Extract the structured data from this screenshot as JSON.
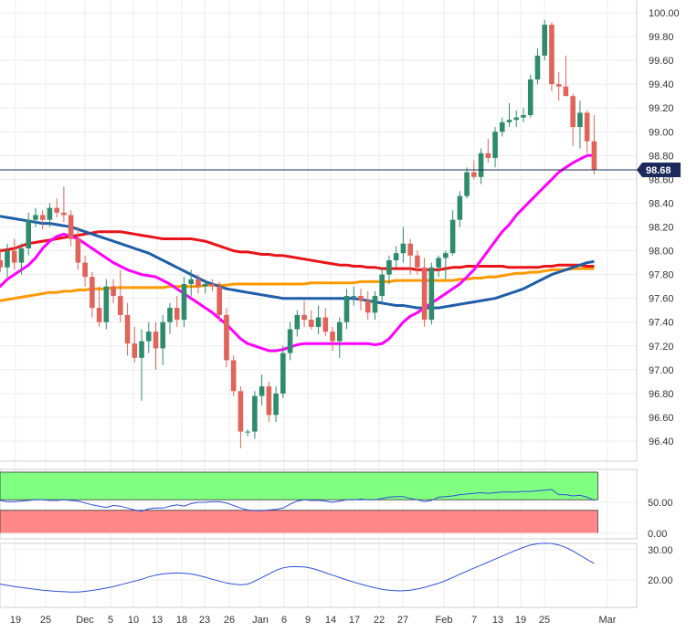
{
  "chart_data": [
    {
      "type": "candlestick",
      "title": "",
      "xlabel": "",
      "ylabel": "",
      "ylim": [
        96.2,
        100.05
      ],
      "y_ticks": [
        "100.00",
        "99.80",
        "99.60",
        "99.40",
        "99.20",
        "99.00",
        "98.80",
        "98.60",
        "98.40",
        "98.20",
        "98.00",
        "97.80",
        "97.60",
        "97.40",
        "97.20",
        "97.00",
        "96.80",
        "96.60",
        "96.40"
      ],
      "x_tick_labels": [
        "19",
        "25",
        "Dec",
        "5",
        "10",
        "13",
        "18",
        "23",
        "26",
        "Jan",
        "6",
        "9",
        "14",
        "17",
        "22",
        "27",
        "Feb",
        "7",
        "13",
        "19",
        "25",
        "Mar"
      ],
      "last_price": {
        "value": 98.68,
        "label": "98.68"
      },
      "colors": {
        "up": "#2e8b6b",
        "down": "#e0645a",
        "sma20": "#ff00ff",
        "sma50": "#1f5ea8",
        "sma100": "#e8141a",
        "sma200": "#ff9900"
      },
      "candles_ohlc": [
        [
          97.78,
          97.96,
          97.7,
          97.92
        ],
        [
          97.92,
          98.02,
          97.82,
          97.86
        ],
        [
          97.86,
          98.06,
          97.78,
          98.0
        ],
        [
          98.0,
          98.1,
          97.84,
          97.9
        ],
        [
          97.9,
          98.06,
          97.8,
          98.02
        ],
        [
          98.02,
          98.32,
          97.96,
          98.26
        ],
        [
          98.26,
          98.36,
          98.2,
          98.3
        ],
        [
          98.3,
          98.34,
          98.18,
          98.26
        ],
        [
          98.26,
          98.4,
          98.2,
          98.36
        ],
        [
          98.36,
          98.44,
          98.28,
          98.32
        ],
        [
          98.32,
          98.54,
          98.24,
          98.3
        ],
        [
          98.3,
          98.34,
          98.04,
          98.1
        ],
        [
          98.1,
          98.2,
          97.84,
          97.9
        ],
        [
          97.9,
          97.96,
          97.7,
          97.78
        ],
        [
          97.78,
          97.82,
          97.44,
          97.52
        ],
        [
          97.52,
          97.7,
          97.36,
          97.4
        ],
        [
          97.4,
          97.76,
          97.34,
          97.7
        ],
        [
          97.7,
          97.76,
          97.56,
          97.62
        ],
        [
          97.62,
          97.84,
          97.4,
          97.46
        ],
        [
          97.46,
          97.56,
          97.12,
          97.22
        ],
        [
          97.22,
          97.36,
          97.06,
          97.1
        ],
        [
          97.1,
          97.34,
          96.74,
          97.24
        ],
        [
          97.24,
          97.4,
          97.14,
          97.32
        ],
        [
          97.32,
          97.4,
          97.0,
          97.18
        ],
        [
          97.18,
          97.46,
          97.04,
          97.4
        ],
        [
          97.4,
          97.56,
          97.3,
          97.52
        ],
        [
          97.52,
          97.62,
          97.36,
          97.42
        ],
        [
          97.42,
          97.78,
          97.36,
          97.72
        ],
        [
          97.72,
          97.84,
          97.62,
          97.76
        ],
        [
          97.76,
          97.8,
          97.64,
          97.7
        ],
        [
          97.7,
          97.76,
          97.64,
          97.72
        ],
        [
          97.72,
          97.76,
          97.66,
          97.7
        ],
        [
          97.7,
          97.74,
          97.4,
          97.46
        ],
        [
          97.46,
          97.52,
          97.02,
          97.08
        ],
        [
          97.08,
          97.12,
          96.78,
          96.82
        ],
        [
          96.82,
          96.86,
          96.34,
          96.48
        ],
        [
          96.48,
          96.5,
          96.44,
          96.48
        ],
        [
          96.48,
          96.82,
          96.42,
          96.78
        ],
        [
          96.78,
          96.96,
          96.7,
          96.86
        ],
        [
          96.86,
          96.9,
          96.56,
          96.62
        ],
        [
          96.62,
          96.86,
          96.56,
          96.8
        ],
        [
          96.8,
          97.2,
          96.76,
          97.14
        ],
        [
          97.14,
          97.4,
          97.08,
          97.34
        ],
        [
          97.34,
          97.5,
          97.28,
          97.46
        ],
        [
          97.46,
          97.58,
          97.36,
          97.42
        ],
        [
          97.42,
          97.5,
          97.34,
          97.36
        ],
        [
          97.36,
          97.54,
          97.3,
          97.44
        ],
        [
          97.44,
          97.52,
          97.28,
          97.32
        ],
        [
          97.32,
          97.36,
          97.16,
          97.24
        ],
        [
          97.24,
          97.44,
          97.1,
          97.4
        ],
        [
          97.4,
          97.68,
          97.34,
          97.62
        ],
        [
          97.62,
          97.7,
          97.54,
          97.62
        ],
        [
          97.62,
          97.68,
          97.5,
          97.58
        ],
        [
          97.58,
          97.66,
          97.42,
          97.48
        ],
        [
          97.48,
          97.66,
          97.42,
          97.62
        ],
        [
          97.62,
          97.86,
          97.56,
          97.8
        ],
        [
          97.8,
          97.96,
          97.72,
          97.92
        ],
        [
          97.92,
          98.04,
          97.86,
          97.98
        ],
        [
          97.98,
          98.2,
          97.9,
          98.06
        ],
        [
          98.06,
          98.1,
          97.8,
          97.96
        ],
        [
          97.96,
          98.0,
          97.8,
          97.86
        ],
        [
          97.86,
          97.94,
          97.36,
          97.42
        ],
        [
          97.42,
          97.9,
          97.38,
          97.86
        ],
        [
          97.86,
          97.96,
          97.78,
          97.94
        ],
        [
          97.94,
          98.0,
          97.76,
          97.98
        ],
        [
          97.98,
          98.34,
          97.96,
          98.26
        ],
        [
          98.26,
          98.5,
          98.2,
          98.46
        ],
        [
          98.46,
          98.7,
          98.44,
          98.66
        ],
        [
          98.66,
          98.76,
          98.6,
          98.62
        ],
        [
          98.62,
          98.86,
          98.56,
          98.82
        ],
        [
          98.82,
          98.94,
          98.74,
          98.78
        ],
        [
          98.78,
          99.04,
          98.7,
          99.0
        ],
        [
          99.0,
          99.12,
          98.96,
          99.08
        ],
        [
          99.08,
          99.24,
          99.04,
          99.1
        ],
        [
          99.1,
          99.18,
          99.04,
          99.12
        ],
        [
          99.12,
          99.2,
          99.08,
          99.14
        ],
        [
          99.14,
          99.48,
          99.12,
          99.44
        ],
        [
          99.44,
          99.7,
          99.4,
          99.64
        ],
        [
          99.64,
          99.94,
          99.6,
          99.9
        ],
        [
          99.9,
          99.92,
          99.34,
          99.4
        ],
        [
          99.4,
          99.5,
          99.26,
          99.38
        ],
        [
          99.38,
          99.64,
          99.32,
          99.3
        ],
        [
          99.3,
          99.32,
          98.88,
          99.04
        ],
        [
          99.04,
          99.26,
          98.86,
          99.16
        ],
        [
          99.16,
          99.18,
          98.82,
          98.92
        ],
        [
          98.92,
          99.14,
          98.64,
          98.68
        ]
      ],
      "series": [
        {
          "values": [
            97.66,
            97.7,
            97.76,
            97.8,
            97.84,
            97.88,
            97.94,
            98.02,
            98.08,
            98.12,
            98.14,
            98.12,
            98.1,
            98.06,
            98.02,
            97.98,
            97.94,
            97.9,
            97.87,
            97.84,
            97.82,
            97.8,
            97.79,
            97.78,
            97.75,
            97.72,
            97.68,
            97.64,
            97.6,
            97.56,
            97.52,
            97.48,
            97.43,
            97.38,
            97.32,
            97.26,
            97.22,
            97.2,
            97.18,
            97.16,
            97.16,
            97.17,
            97.19,
            97.21,
            97.22,
            97.22,
            97.22,
            97.22,
            97.22,
            97.22,
            97.22,
            97.22,
            97.22,
            97.22,
            97.21,
            97.22,
            97.26,
            97.33,
            97.4,
            97.45,
            97.48,
            97.52,
            97.56,
            97.6,
            97.64,
            97.68,
            97.72,
            97.78,
            97.84,
            97.92,
            98.0,
            98.08,
            98.16,
            98.22,
            98.3,
            98.36,
            98.42,
            98.48,
            98.54,
            98.6,
            98.66,
            98.7,
            98.74,
            98.77,
            98.8,
            98.8
          ]
        },
        {
          "values": [
            98.3,
            98.29,
            98.28,
            98.27,
            98.26,
            98.25,
            98.24,
            98.23,
            98.23,
            98.22,
            98.21,
            98.2,
            98.18,
            98.16,
            98.14,
            98.12,
            98.1,
            98.08,
            98.06,
            98.04,
            98.02,
            98.0,
            97.98,
            97.95,
            97.92,
            97.89,
            97.86,
            97.83,
            97.8,
            97.77,
            97.74,
            97.72,
            97.7,
            97.68,
            97.67,
            97.66,
            97.65,
            97.64,
            97.63,
            97.62,
            97.61,
            97.6,
            97.6,
            97.6,
            97.6,
            97.6,
            97.6,
            97.6,
            97.6,
            97.6,
            97.6,
            97.6,
            97.59,
            97.58,
            97.57,
            97.56,
            97.55,
            97.54,
            97.54,
            97.53,
            97.52,
            97.52,
            97.52,
            97.52,
            97.53,
            97.54,
            97.55,
            97.56,
            97.57,
            97.58,
            97.59,
            97.6,
            97.62,
            97.64,
            97.66,
            97.68,
            97.71,
            97.74,
            97.77,
            97.8,
            97.82,
            97.84,
            97.86,
            97.88,
            97.9,
            97.91
          ]
        },
        {
          "values": [
            98.0,
            98.0,
            98.01,
            98.02,
            98.04,
            98.06,
            98.07,
            98.08,
            98.09,
            98.1,
            98.11,
            98.12,
            98.13,
            98.14,
            98.15,
            98.16,
            98.16,
            98.16,
            98.16,
            98.15,
            98.14,
            98.13,
            98.12,
            98.11,
            98.1,
            98.1,
            98.1,
            98.1,
            98.1,
            98.09,
            98.08,
            98.06,
            98.04,
            98.02,
            98.0,
            97.99,
            97.99,
            97.98,
            97.97,
            97.97,
            97.96,
            97.96,
            97.95,
            97.94,
            97.93,
            97.92,
            97.91,
            97.9,
            97.89,
            97.88,
            97.88,
            97.87,
            97.87,
            97.86,
            97.86,
            97.85,
            97.85,
            97.85,
            97.85,
            97.85,
            97.84,
            97.84,
            97.84,
            97.84,
            97.85,
            97.86,
            97.86,
            97.87,
            97.87,
            97.87,
            97.87,
            97.87,
            97.87,
            97.86,
            97.86,
            97.86,
            97.86,
            97.86,
            97.87,
            97.87,
            97.88,
            97.88,
            97.88,
            97.88,
            97.87,
            97.87
          ]
        },
        {
          "values": [
            97.57,
            97.58,
            97.59,
            97.6,
            97.61,
            97.62,
            97.63,
            97.64,
            97.65,
            97.65,
            97.66,
            97.66,
            97.67,
            97.67,
            97.68,
            97.68,
            97.68,
            97.69,
            97.69,
            97.69,
            97.69,
            97.69,
            97.69,
            97.69,
            97.69,
            97.7,
            97.7,
            97.7,
            97.7,
            97.7,
            97.71,
            97.71,
            97.71,
            97.71,
            97.72,
            97.72,
            97.72,
            97.72,
            97.72,
            97.72,
            97.72,
            97.72,
            97.72,
            97.72,
            97.72,
            97.73,
            97.73,
            97.73,
            97.73,
            97.73,
            97.73,
            97.73,
            97.74,
            97.74,
            97.74,
            97.74,
            97.74,
            97.75,
            97.75,
            97.75,
            97.75,
            97.75,
            97.75,
            97.75,
            97.75,
            97.75,
            97.76,
            97.76,
            97.77,
            97.77,
            97.78,
            97.78,
            97.79,
            97.8,
            97.81,
            97.81,
            97.82,
            97.82,
            97.83,
            97.84,
            97.84,
            97.84,
            97.85,
            97.85,
            97.85,
            97.85
          ]
        }
      ]
    },
    {
      "type": "line",
      "title": "",
      "ylim": [
        0,
        100
      ],
      "y_ticks": [
        "50.00",
        "0.00"
      ],
      "overbought_level": 70,
      "oversold_level": 30,
      "colors": {
        "line": "#2f4fd8",
        "overbought_fill": "#80ff80",
        "oversold_fill": "#ff8888"
      },
      "values": [
        52,
        53,
        51,
        51,
        52,
        53,
        54,
        54,
        53,
        53,
        54,
        53,
        52,
        49,
        46,
        44,
        42,
        45,
        44,
        41,
        38,
        36,
        40,
        41,
        41,
        44,
        46,
        44,
        48,
        50,
        50,
        51,
        51,
        49,
        45,
        41,
        38,
        37,
        37,
        38,
        39,
        41,
        47,
        52,
        54,
        53,
        53,
        52,
        50,
        52,
        54,
        54,
        55,
        54,
        54,
        56,
        58,
        59,
        59,
        56,
        54,
        51,
        53,
        58,
        59,
        60,
        62,
        63,
        64,
        65,
        64,
        65,
        66,
        66,
        66,
        67,
        67,
        68,
        69,
        70,
        62,
        62,
        60,
        61,
        58,
        53
      ]
    },
    {
      "type": "line",
      "title": "",
      "ylim": [
        13,
        33
      ],
      "y_ticks": [
        "30.00",
        "20.00"
      ],
      "colors": {
        "line": "#2f4fd8"
      },
      "values": [
        19.0,
        18.6,
        18.2,
        17.8,
        17.5,
        17.2,
        16.9,
        16.6,
        16.4,
        16.2,
        16.1,
        16.0,
        16.0,
        16.2,
        16.5,
        16.9,
        17.3,
        17.8,
        18.4,
        19.0,
        19.6,
        20.2,
        21.0,
        21.6,
        22.0,
        22.2,
        22.3,
        22.2,
        22.0,
        21.5,
        20.9,
        20.2,
        19.6,
        19.0,
        18.6,
        18.4,
        18.6,
        19.6,
        20.8,
        22.0,
        23.2,
        24.0,
        24.4,
        24.4,
        24.3,
        23.9,
        23.2,
        22.4,
        21.6,
        20.8,
        20.0,
        19.3,
        18.6,
        18.0,
        17.4,
        16.9,
        16.6,
        16.4,
        16.4,
        16.6,
        17.0,
        17.5,
        18.2,
        18.9,
        19.8,
        20.8,
        21.9,
        22.9,
        23.9,
        24.9,
        25.9,
        26.9,
        27.9,
        28.9,
        29.9,
        30.8,
        31.6,
        32.0,
        32.2,
        32.1,
        31.6,
        30.8,
        29.6,
        28.2,
        26.8,
        25.5
      ]
    }
  ]
}
